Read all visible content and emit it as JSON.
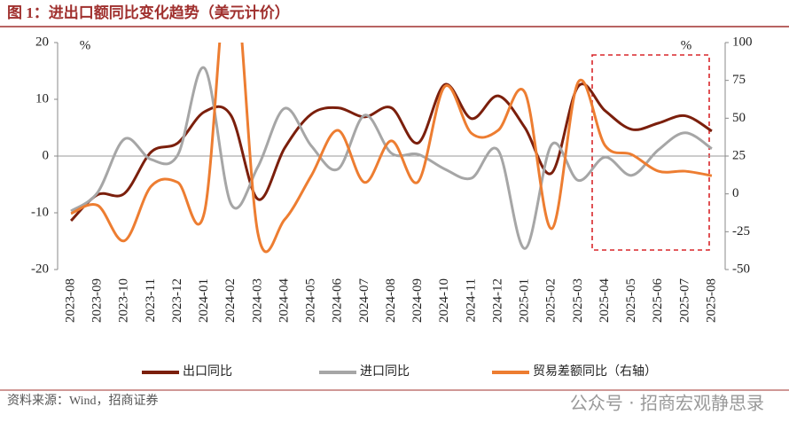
{
  "chart_data": {
    "type": "line",
    "title": "图 1：进出口额同比变化趋势（美元计价）",
    "y_unit": "%",
    "y2_unit": "%",
    "source": "资料来源：Wind，招商证券",
    "watermark": "公众号 · 招商宏观静思录",
    "categories": [
      "2023-08",
      "2023-09",
      "2023-10",
      "2023-11",
      "2023-12",
      "2024-01",
      "2024-02",
      "2024-03",
      "2024-04",
      "2024-05",
      "2024-06",
      "2024-07",
      "2024-08",
      "2024-09",
      "2024-10",
      "2024-11",
      "2024-12",
      "2025-01",
      "2025-02",
      "2025-03",
      "2025-04",
      "2025-05",
      "2025-06",
      "2025-07",
      "2025-08"
    ],
    "series": [
      {
        "name": "出口同比",
        "color": "#7b1f0c",
        "axis": "y",
        "values": [
          -11.4,
          -6.8,
          -6.6,
          0.7,
          2.3,
          7.8,
          7.1,
          -7.6,
          1.4,
          7.4,
          8.5,
          6.9,
          8.5,
          2.3,
          12.6,
          6.6,
          10.6,
          5.0,
          -3.0,
          12.3,
          8.0,
          4.7,
          5.8,
          7.1,
          4.4
        ]
      },
      {
        "name": "进口同比",
        "color": "#a6a6a6",
        "axis": "y",
        "values": [
          -9.7,
          -6.4,
          3.0,
          -0.6,
          0.2,
          15.5,
          -8.5,
          -1.9,
          8.4,
          1.8,
          -2.3,
          7.2,
          0.5,
          0.3,
          -2.3,
          -3.9,
          1.0,
          -16.3,
          2.0,
          -4.3,
          -0.2,
          -3.4,
          1.1,
          4.1,
          1.3
        ]
      },
      {
        "name": "贸易差额同比（右轴）",
        "color": "#ed7d31",
        "axis": "y2",
        "values": [
          -13,
          -7.6,
          -31,
          5,
          7.6,
          -12,
          160,
          -26,
          -17,
          12,
          42,
          7.6,
          35,
          8,
          71,
          40,
          42,
          67,
          -23,
          74,
          32,
          26,
          15,
          15,
          12
        ]
      }
    ],
    "ylim": [
      -20,
      20
    ],
    "yticks": [
      -20,
      -10,
      0,
      10,
      20
    ],
    "y2lim": [
      -50,
      100
    ],
    "y2ticks": [
      -50,
      -25,
      0,
      25,
      50,
      75,
      100
    ],
    "negative_tick_color": "#c00000"
  }
}
